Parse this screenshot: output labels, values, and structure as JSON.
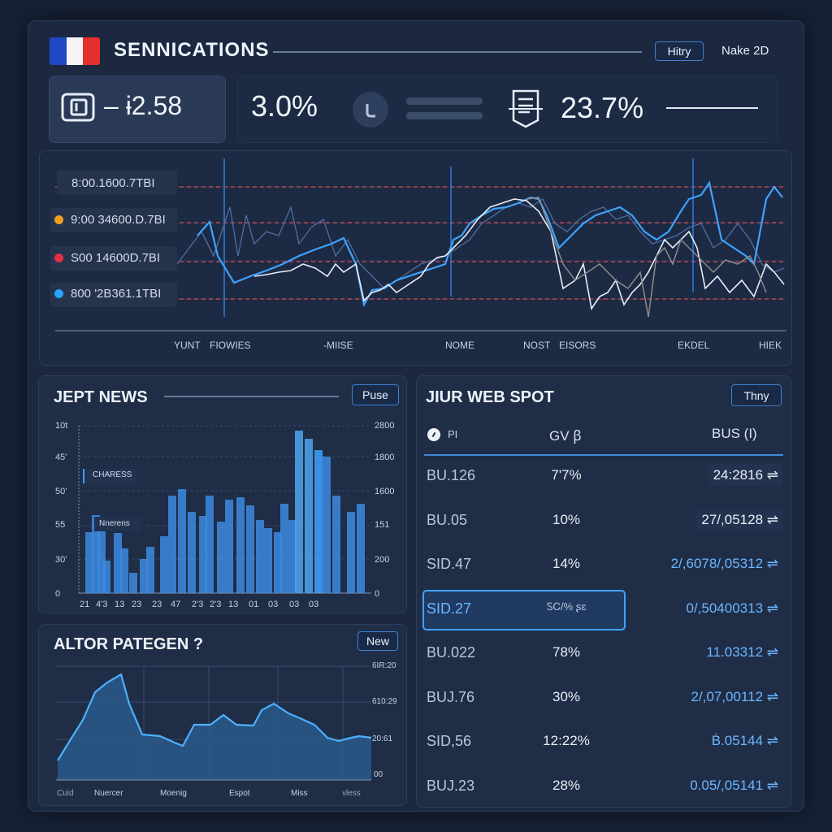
{
  "header": {
    "title": "SENNICATIONS",
    "button_1": "Hitry",
    "button_2": "Nake 2D"
  },
  "stats": {
    "stat_1": "– ɨ2.58",
    "stat_2": "3.0%",
    "stat_3": "23.7%"
  },
  "main_chart": {
    "legend": [
      "8:00.1600.7TBI",
      "9:00 34600.D.7BI",
      "S00 14600D.7BI",
      "800 '2B361.1TBI"
    ],
    "x_labels": [
      "YUNT",
      "FIOWIES",
      "-MIISE",
      "NOME",
      "NOST",
      "EISORS",
      "EKDEL",
      "HIEK"
    ]
  },
  "news_panel": {
    "title": "JEPT NEWS",
    "button": "Puse",
    "tag_1": "CHARESS",
    "tag_2": "Nnerens",
    "y_left": [
      "10t",
      "45'",
      "50'",
      "55",
      "30'",
      "0"
    ],
    "y_right": [
      "2800",
      "1800",
      "1600",
      "151",
      "200",
      "0"
    ],
    "x_labels": [
      "21",
      "4'3",
      "13",
      "23",
      "23",
      "47",
      "2'3",
      "2'3",
      "13",
      "01",
      "03",
      "03",
      "03"
    ]
  },
  "area_panel": {
    "title": "ALTOR PATEGEN ?",
    "button": "New",
    "y_right": [
      "6IR:20",
      "610:29",
      "20:61",
      "00"
    ],
    "x_labels": [
      "Cuid",
      "Nuercer",
      "Moenig",
      "Espot",
      "Miss",
      "vless"
    ]
  },
  "table_panel": {
    "title": "JIUR WEB SPOT",
    "button": "Thny",
    "col_1": "PI",
    "col_2": "GV ꞵ",
    "col_3": "BUS (I)",
    "rows": [
      {
        "sym": "BU.126",
        "pct": "7'7%",
        "val": "24:2816 ⇌"
      },
      {
        "sym": "BU.05",
        "pct": "10%",
        "val": "27/,05128 ⇌"
      },
      {
        "sym": "SID.47",
        "pct": "14%",
        "val": "2/,6078/,05312 ⇌"
      },
      {
        "sym": "SID.27",
        "pct": "ᏚᏟ/% ʂɛ",
        "val": "0/,50400313 ⇌"
      },
      {
        "sym": "BU.022",
        "pct": "78%",
        "val": "11.03312 ⇌"
      },
      {
        "sym": "BUJ.76",
        "pct": "30%",
        "val": "2/,07,00112 ⇌"
      },
      {
        "sym": "SID,56",
        "pct": "12:22%",
        "val": "Ḃ.05144 ⇌"
      },
      {
        "sym": "BUJ.23",
        "pct": "28%",
        "val": "0.05/,05141 ⇌"
      }
    ]
  },
  "colors": {
    "accent_blue": "#3fa3ff",
    "line_white": "#e8edf5",
    "dashed_red": "#c0424f",
    "legend_orange": "#f0a020",
    "legend_red": "#e53044",
    "legend_blue": "#2aa0ff"
  },
  "icons": [
    "flag-icon",
    "wallet-icon",
    "clock-icon",
    "document-icon"
  ]
}
